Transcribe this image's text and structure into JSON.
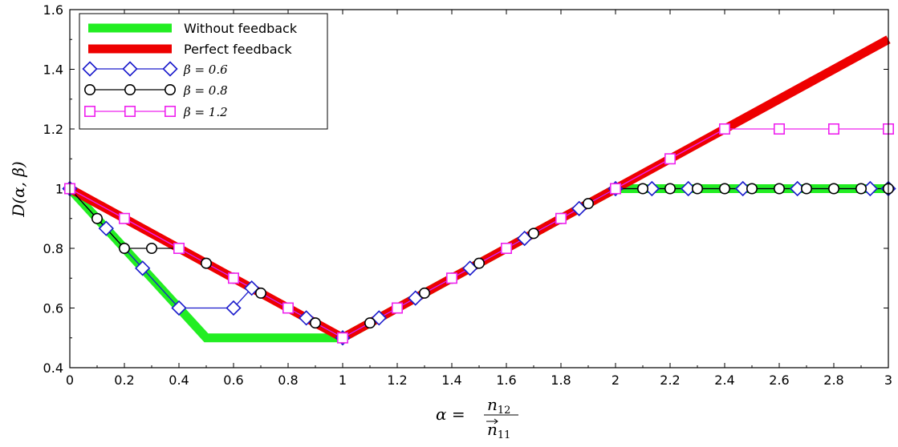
{
  "chart_data": {
    "type": "line",
    "title": "",
    "xlabel": "α = n12 / n→11",
    "ylabel": "D(α, β)",
    "xlim": [
      0,
      3
    ],
    "ylim": [
      0.4,
      1.6
    ],
    "x_ticks": [
      0,
      0.2,
      0.4,
      0.6,
      0.8,
      1,
      1.2,
      1.4,
      1.6,
      1.8,
      2,
      2.2,
      2.4,
      2.6,
      2.8,
      3
    ],
    "x_tick_labels": [
      "0",
      "0.2",
      "0.4",
      "0.6",
      "0.8",
      "1",
      "1.2",
      "1.4",
      "1.6",
      "1.8",
      "2",
      "2.2",
      "2.4",
      "2.6",
      "2.8",
      "3"
    ],
    "y_ticks": [
      0.4,
      0.6,
      0.8,
      1,
      1.2,
      1.4,
      1.6
    ],
    "y_tick_labels": [
      "0.4",
      "0.6",
      "0.8",
      "1",
      "1.2",
      "1.4",
      "1.6"
    ],
    "grid": false,
    "legend_position": "top-left",
    "series": [
      {
        "name": "Without feedback",
        "color": "#22ee22",
        "style": "thick-line",
        "x": [
          0,
          0.5,
          1,
          2,
          3
        ],
        "y": [
          1,
          0.5,
          0.5,
          1,
          1
        ]
      },
      {
        "name": "Perfect feedback",
        "color": "#ee0000",
        "style": "thick-line",
        "x": [
          0,
          1,
          3
        ],
        "y": [
          1,
          0.5,
          1.5
        ]
      },
      {
        "name": "β = 0.6",
        "color": "#1a1acc",
        "marker": "diamond",
        "x": [
          0,
          0.1333,
          0.2667,
          0.4,
          0.6,
          0.6667,
          0.8667,
          1,
          1.1333,
          1.2667,
          1.4667,
          1.6667,
          1.8667,
          2,
          2.1333,
          2.2667,
          2.4667,
          2.6667,
          2.9333,
          3
        ],
        "y": [
          1,
          0.8667,
          0.7333,
          0.6,
          0.6,
          0.6667,
          0.5667,
          0.5,
          0.5667,
          0.6333,
          0.7333,
          0.8333,
          0.9333,
          1,
          1,
          1,
          1,
          1,
          1,
          1
        ]
      },
      {
        "name": "β = 0.8",
        "color": "#000000",
        "marker": "circle",
        "x": [
          0,
          0.1,
          0.2,
          0.3,
          0.4,
          0.5,
          0.6,
          0.7,
          0.8,
          0.9,
          1,
          1.1,
          1.2,
          1.3,
          1.4,
          1.5,
          1.6,
          1.7,
          1.8,
          1.9,
          2,
          2.1,
          2.2,
          2.3,
          2.4,
          2.5,
          2.6,
          2.7,
          2.8,
          2.9,
          3
        ],
        "y": [
          1,
          0.9,
          0.8,
          0.8,
          0.8,
          0.75,
          0.7,
          0.65,
          0.6,
          0.55,
          0.5,
          0.55,
          0.6,
          0.65,
          0.7,
          0.75,
          0.8,
          0.85,
          0.9,
          0.95,
          1,
          1,
          1,
          1,
          1,
          1,
          1,
          1,
          1,
          1,
          1
        ]
      },
      {
        "name": "β = 1.2",
        "color": "#ee22ee",
        "marker": "square",
        "x": [
          0,
          0.2,
          0.4,
          0.6,
          0.8,
          1,
          1.2,
          1.4,
          1.6,
          1.8,
          2,
          2.2,
          2.4,
          2.6,
          2.8,
          3
        ],
        "y": [
          1,
          0.9,
          0.8,
          0.7,
          0.6,
          0.5,
          0.6,
          0.7,
          0.8,
          0.9,
          1,
          1.1,
          1.2,
          1.2,
          1.2,
          1.2
        ]
      }
    ]
  },
  "legend": {
    "without": "Without feedback",
    "perfect": "Perfect feedback",
    "beta06": "β = 0.6",
    "beta08": "β = 0.8",
    "beta12": "β = 1.2"
  },
  "axes": {
    "ylabel_text": "D(α, β)",
    "xlabel_alpha": "α =",
    "xlabel_num": "n",
    "xlabel_num_sub": "12",
    "xlabel_den": "n",
    "xlabel_den_sub": "11"
  }
}
